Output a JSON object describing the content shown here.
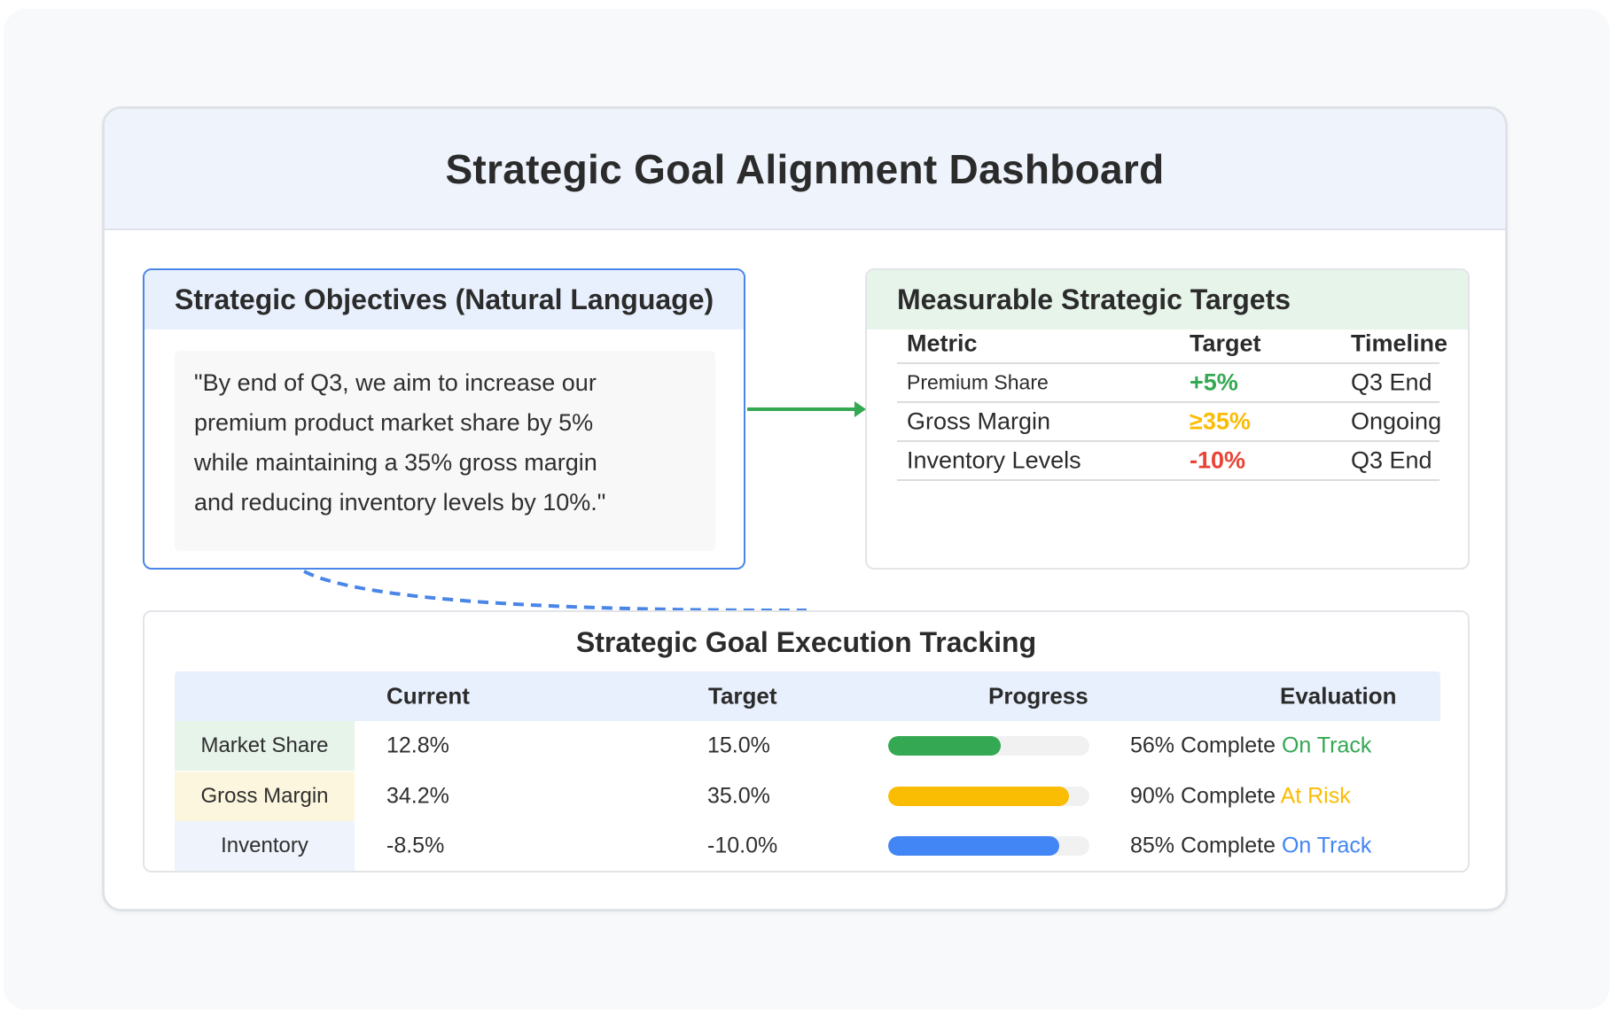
{
  "title": "Strategic Goal Alignment Dashboard",
  "objectives": {
    "title": "Strategic Objectives (Natural Language)",
    "text": "\"By end of Q3, we aim to increase our premium product market share by 5% while maintaining a 35% gross margin and reducing inventory levels by 10%.\""
  },
  "targets": {
    "title": "Measurable Strategic Targets",
    "headers": {
      "metric": "Metric",
      "target": "Target",
      "timeline": "Timeline"
    },
    "rows": [
      {
        "metric": "Premium Share",
        "target": "+5%",
        "timeline": "Q3 End",
        "color": "#34a853"
      },
      {
        "metric": "Gross Margin",
        "target": "≥35%",
        "timeline": "Ongoing",
        "color": "#fbbc04"
      },
      {
        "metric": "Inventory Levels",
        "target": "-10%",
        "timeline": "Q3 End",
        "color": "#ea4335"
      }
    ]
  },
  "tracking": {
    "title": "Strategic Goal Execution Tracking",
    "headers": {
      "current": "Current",
      "target": "Target",
      "progress": "Progress",
      "evaluation": "Evaluation"
    },
    "rows": [
      {
        "label": "Market Share",
        "current": "12.8%",
        "target": "15.0%",
        "progress": 0.56,
        "evaluation": "56% Complete",
        "status": "On Track",
        "bar_color": "#34a853",
        "status_color": "#34a853",
        "label_bg": "#e7f4ea"
      },
      {
        "label": "Gross Margin",
        "current": "34.2%",
        "target": "35.0%",
        "progress": 0.9,
        "evaluation": "90% Complete",
        "status": "At Risk",
        "bar_color": "#fbbc04",
        "status_color": "#fbbc04",
        "label_bg": "#fdf6de"
      },
      {
        "label": "Inventory",
        "current": "-8.5%",
        "target": "-10.0%",
        "progress": 0.85,
        "evaluation": "85% Complete",
        "status": "On Track",
        "bar_color": "#4285f4",
        "status_color": "#4285f4",
        "label_bg": "#eef3fc"
      }
    ]
  },
  "colors": {
    "objective_border": "#4a86e8",
    "arrow": "#34a853",
    "dashed_link": "#4a86e8"
  }
}
